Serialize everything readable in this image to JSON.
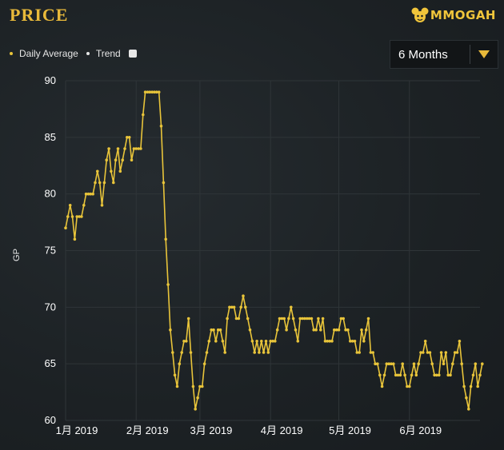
{
  "header": {
    "title": "PRICE",
    "logo_text": "MMOGAH"
  },
  "legend": {
    "items": [
      {
        "label": "Daily Average",
        "color": "#e8c43a"
      },
      {
        "label": "Trend",
        "color": "#e6e6e6"
      }
    ]
  },
  "range_select": {
    "selected": "6 Months",
    "arrow_color": "#e8b93a"
  },
  "colors": {
    "series": "#e8c43a",
    "grid": "#2f3538"
  },
  "chart_data": {
    "type": "line",
    "title": "",
    "xlabel": "",
    "ylabel": "GP",
    "ylim": [
      60,
      90
    ],
    "yticks": [
      60,
      65,
      70,
      75,
      80,
      85,
      90
    ],
    "xlim": [
      0,
      182
    ],
    "xticks": [
      {
        "label": "1月 2019",
        "x": 0
      },
      {
        "label": "2月 2019",
        "x": 31
      },
      {
        "label": "3月 2019",
        "x": 59
      },
      {
        "label": "4月 2019",
        "x": 90
      },
      {
        "label": "5月 2019",
        "x": 120
      },
      {
        "label": "6月 2019",
        "x": 151
      }
    ],
    "legend_position": "top-left",
    "grid": true,
    "series": [
      {
        "name": "Daily Average",
        "x_start": "2019-01-01",
        "x_step_days": 1,
        "values": [
          77,
          78,
          79,
          78,
          76,
          78,
          78,
          78,
          79,
          80,
          80,
          80,
          80,
          81,
          82,
          81,
          79,
          81,
          83,
          84,
          82,
          81,
          83,
          84,
          82,
          83,
          84,
          85,
          85,
          83,
          84,
          84,
          84,
          84,
          87,
          89,
          89,
          89,
          89,
          89,
          89,
          89,
          86,
          81,
          76,
          72,
          68,
          66,
          64,
          63,
          65,
          66,
          67,
          67,
          69,
          66,
          63,
          61,
          62,
          63,
          63,
          65,
          66,
          67,
          68,
          68,
          67,
          68,
          68,
          67,
          66,
          69,
          70,
          70,
          70,
          69,
          69,
          70,
          71,
          70,
          69,
          68,
          67,
          66,
          67,
          66,
          67,
          66,
          67,
          66,
          67,
          67,
          67,
          68,
          69,
          69,
          69,
          68,
          69,
          70,
          69,
          68,
          67,
          69,
          69,
          69,
          69,
          69,
          69,
          68,
          68,
          69,
          68,
          69,
          67,
          67,
          67,
          67,
          68,
          68,
          68,
          69,
          69,
          68,
          68,
          67,
          67,
          67,
          66,
          66,
          68,
          67,
          68,
          69,
          66,
          66,
          65,
          65,
          64,
          63,
          64,
          65,
          65,
          65,
          65,
          64,
          64,
          64,
          65,
          64,
          63,
          63,
          64,
          65,
          64,
          65,
          66,
          66,
          67,
          66,
          66,
          65,
          64,
          64,
          64,
          66,
          65,
          66,
          64,
          64,
          65,
          66,
          66,
          67,
          65,
          63,
          62,
          61,
          63,
          64,
          65,
          63,
          64,
          65
        ]
      }
    ]
  }
}
